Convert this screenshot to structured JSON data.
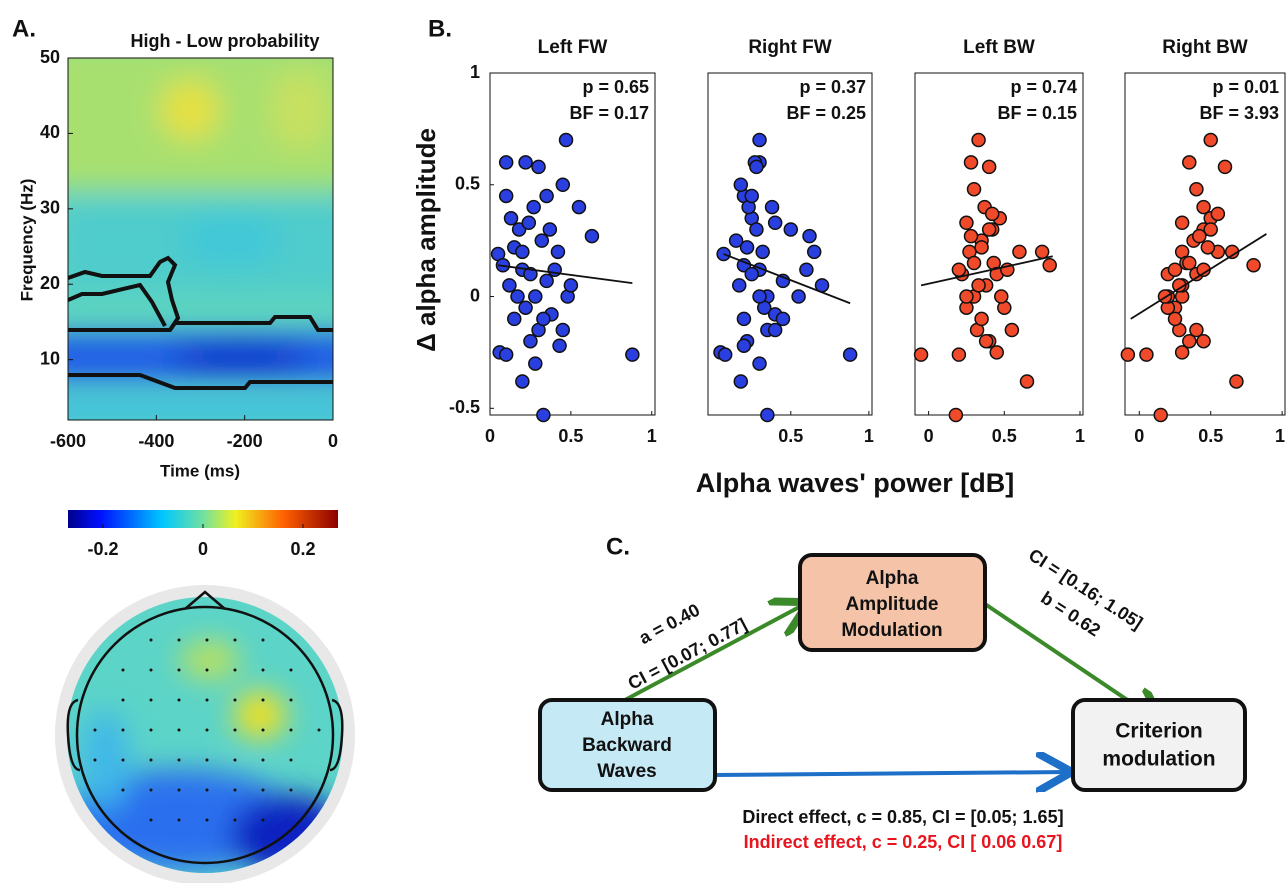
{
  "panel_labels": [
    "A.",
    "B.",
    "C."
  ],
  "chart_data": [
    {
      "type": "heatmap",
      "title": "High - Low probability",
      "xlabel": "Time (ms)",
      "ylabel": "Frequency (Hz)",
      "xlim": [
        -600,
        0
      ],
      "ylim": [
        2,
        50
      ],
      "xticks": [
        -600,
        -400,
        -200,
        0
      ],
      "yticks": [
        10,
        20,
        30,
        40,
        50
      ],
      "colorbar": {
        "clim": [
          -0.27,
          0.27
        ],
        "ticks": [
          -0.2,
          0,
          0.2
        ]
      }
    },
    {
      "type": "scatter",
      "title": "Left FW",
      "annotations": [
        "p = 0.65",
        "BF = 0.17"
      ],
      "color": "#2a3fe0",
      "xlim": [
        0,
        1.02
      ],
      "ylim": [
        -0.53,
        1
      ],
      "xticks": [
        0,
        0.5,
        1
      ],
      "yticks": [
        -0.5,
        0,
        0.5,
        1
      ],
      "x": [
        0.05,
        0.06,
        0.08,
        0.1,
        0.1,
        0.12,
        0.13,
        0.15,
        0.15,
        0.17,
        0.18,
        0.2,
        0.2,
        0.22,
        0.22,
        0.24,
        0.25,
        0.25,
        0.27,
        0.28,
        0.3,
        0.3,
        0.32,
        0.33,
        0.35,
        0.35,
        0.37,
        0.38,
        0.4,
        0.42,
        0.43,
        0.45,
        0.47,
        0.48,
        0.5,
        0.55,
        0.63,
        0.88,
        0.2,
        0.33,
        0.1,
        0.28,
        0.45
      ],
      "values": [
        0.19,
        -0.25,
        0.14,
        0.6,
        -0.26,
        0.05,
        0.35,
        0.22,
        -0.1,
        0.0,
        0.3,
        0.12,
        -0.38,
        0.6,
        -0.05,
        0.33,
        0.1,
        -0.2,
        0.4,
        0.0,
        0.58,
        -0.15,
        0.25,
        -0.53,
        0.45,
        0.07,
        0.3,
        -0.08,
        0.12,
        0.2,
        -0.22,
        0.5,
        0.7,
        0.0,
        0.05,
        0.4,
        0.27,
        -0.26,
        0.2,
        -0.1,
        0.45,
        -0.3,
        -0.15
      ],
      "fit": {
        "x": [
          0.05,
          0.88
        ],
        "y": [
          0.14,
          0.06
        ]
      }
    },
    {
      "type": "scatter",
      "title": "Right FW",
      "annotations": [
        "p = 0.37",
        "BF = 0.25"
      ],
      "color": "#2a3fe0",
      "xlim": [
        -0.03,
        1.02
      ],
      "ylim": [
        -0.53,
        1
      ],
      "xticks": [
        0.5,
        1
      ],
      "x": [
        0.07,
        0.05,
        0.2,
        0.3,
        0.08,
        0.17,
        0.25,
        0.22,
        0.2,
        0.35,
        0.28,
        0.3,
        0.18,
        0.27,
        0.33,
        0.4,
        0.25,
        0.22,
        0.38,
        0.3,
        0.28,
        0.35,
        0.15,
        0.35,
        0.2,
        0.45,
        0.5,
        0.4,
        0.6,
        0.65,
        0.2,
        0.18,
        0.3,
        0.55,
        0.7,
        0.23,
        0.62,
        0.88,
        0.32,
        0.45,
        0.25,
        0.3,
        0.4
      ],
      "values": [
        0.19,
        -0.25,
        0.14,
        0.6,
        -0.26,
        0.05,
        0.35,
        0.22,
        -0.1,
        0.0,
        0.3,
        0.12,
        -0.38,
        0.6,
        -0.05,
        0.33,
        0.1,
        -0.2,
        0.4,
        0.0,
        0.58,
        -0.15,
        0.25,
        -0.53,
        0.45,
        0.07,
        0.3,
        -0.08,
        0.12,
        0.2,
        -0.22,
        0.5,
        0.7,
        0.0,
        0.05,
        0.4,
        0.27,
        -0.26,
        0.2,
        -0.1,
        0.45,
        -0.3,
        -0.15
      ],
      "fit": {
        "x": [
          0.07,
          0.88
        ],
        "y": [
          0.19,
          -0.03
        ]
      }
    },
    {
      "type": "scatter",
      "title": "Left BW",
      "annotations": [
        "p = 0.74",
        "BF = 0.15"
      ],
      "color": "#f04a2a",
      "xlim": [
        -0.09,
        1.02
      ],
      "ylim": [
        -0.53,
        1
      ],
      "xticks": [
        0,
        0.5,
        1
      ],
      "x": [
        -0.05,
        0.18,
        0.2,
        0.22,
        0.25,
        0.25,
        0.27,
        0.28,
        0.3,
        0.3,
        0.32,
        0.33,
        0.35,
        0.35,
        0.37,
        0.38,
        0.4,
        0.4,
        0.42,
        0.43,
        0.45,
        0.45,
        0.47,
        0.5,
        0.52,
        0.55,
        0.6,
        0.65,
        0.75,
        0.8,
        0.3,
        0.35,
        0.2,
        0.28,
        0.38,
        0.42,
        0.25,
        0.33,
        0.48,
        0.4
      ],
      "values": [
        -0.26,
        -0.53,
        -0.26,
        0.1,
        0.33,
        -0.05,
        0.2,
        0.6,
        0.0,
        0.48,
        -0.15,
        0.7,
        0.25,
        -0.1,
        0.4,
        0.05,
        0.58,
        -0.2,
        0.3,
        0.15,
        -0.25,
        0.1,
        0.35,
        -0.05,
        0.12,
        -0.15,
        0.2,
        -0.38,
        0.2,
        0.14,
        0.15,
        0.22,
        0.12,
        0.27,
        -0.2,
        0.37,
        0.0,
        0.05,
        0.0,
        0.3
      ],
      "fit": {
        "x": [
          -0.05,
          0.82
        ],
        "y": [
          0.05,
          0.18
        ]
      }
    },
    {
      "type": "scatter",
      "title": "Right BW",
      "annotations": [
        "p = 0.01",
        "BF = 3.93"
      ],
      "color": "#f04a2a",
      "xlim": [
        -0.1,
        1.02
      ],
      "ylim": [
        -0.53,
        1
      ],
      "xticks": [
        0,
        0.5,
        1
      ],
      "x": [
        -0.08,
        0.15,
        0.05,
        0.2,
        0.3,
        0.25,
        0.3,
        0.35,
        0.3,
        0.4,
        0.28,
        0.5,
        0.38,
        0.25,
        0.45,
        0.3,
        0.6,
        0.35,
        0.45,
        0.33,
        0.3,
        0.4,
        0.5,
        0.2,
        0.45,
        0.4,
        0.55,
        0.68,
        0.65,
        0.8,
        0.35,
        0.48,
        0.25,
        0.42,
        0.45,
        0.55,
        0.2,
        0.28,
        0.18,
        0.5
      ],
      "values": [
        -0.26,
        -0.53,
        -0.26,
        0.1,
        0.33,
        -0.05,
        0.2,
        0.6,
        0.0,
        0.48,
        -0.15,
        0.7,
        0.25,
        -0.1,
        0.4,
        0.05,
        0.58,
        -0.2,
        0.3,
        0.15,
        -0.25,
        0.1,
        0.35,
        -0.05,
        0.12,
        -0.15,
        0.2,
        -0.38,
        0.2,
        0.14,
        0.15,
        0.22,
        0.12,
        0.27,
        -0.2,
        0.37,
        0.0,
        0.05,
        0.0,
        0.3
      ],
      "fit": {
        "x": [
          -0.06,
          0.89
        ],
        "y": [
          -0.1,
          0.28
        ]
      }
    }
  ],
  "scatter_ylabel": "Δ alpha amplitude",
  "scatter_xlabel": "Alpha waves' power [dB]",
  "diagram": {
    "nodes": [
      {
        "label": [
          "Alpha",
          "Amplitude",
          "Modulation"
        ]
      },
      {
        "label": [
          "Alpha",
          "Backward",
          "Waves"
        ]
      },
      {
        "label": [
          "Criterion",
          "modulation"
        ]
      }
    ],
    "edges": [
      {
        "label": [
          "a = 0.40",
          "CI = [0.07; 0.77]"
        ]
      },
      {
        "label": [
          "b = 0.62",
          "CI = [0.16; 1.05]"
        ]
      }
    ],
    "notes": [
      "Direct effect, c = 0.85, CI = [0.05; 1.65]",
      "Indirect effect, c = 0.25, CI [ 0.06 0.67]"
    ]
  }
}
